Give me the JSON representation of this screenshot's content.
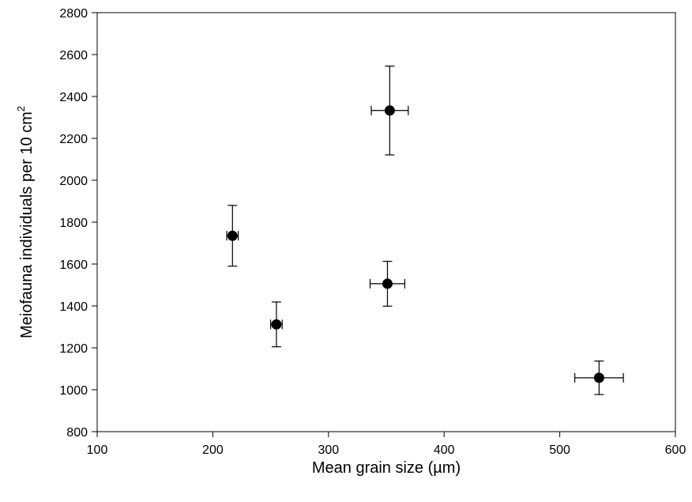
{
  "chart_data": {
    "type": "scatter",
    "title": "",
    "xlabel": "Mean grain size (µm)",
    "ylabel": {
      "text": "Meiofauna individuals per 10 cm",
      "superscript": "2"
    },
    "xlim": [
      100,
      600
    ],
    "ylim": [
      800,
      2800
    ],
    "x_ticks": [
      100,
      200,
      300,
      400,
      500,
      600
    ],
    "y_ticks": [
      800,
      1000,
      1200,
      1400,
      1600,
      1800,
      2000,
      2200,
      2400,
      2600,
      2800
    ],
    "grid": false,
    "legend": "none",
    "marker_color": "#000000",
    "points": [
      {
        "x": 217,
        "y": 1735,
        "x_err": 5,
        "y_err": 145
      },
      {
        "x": 255,
        "y": 1312,
        "x_err": 5,
        "y_err": 107
      },
      {
        "x": 351,
        "y": 1506,
        "x_err": 15,
        "y_err": 107
      },
      {
        "x": 353,
        "y": 2333,
        "x_err": 16,
        "y_err": 212
      },
      {
        "x": 534,
        "y": 1057,
        "x_err": 21,
        "y_err": 80
      }
    ]
  }
}
